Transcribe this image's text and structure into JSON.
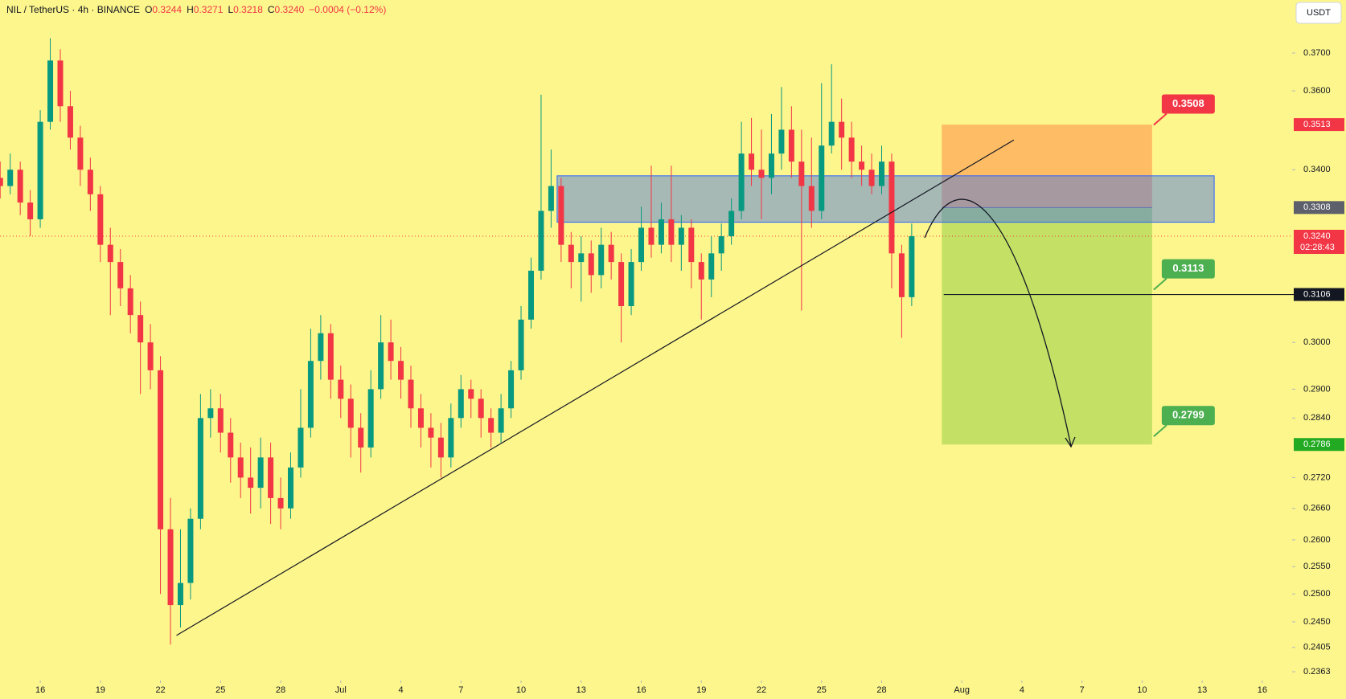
{
  "header": {
    "symbol": "NIL / TetherUS · 4h · BINANCE",
    "ohlc": [
      {
        "key": "O",
        "value": "0.3244"
      },
      {
        "key": "H",
        "value": "0.3271"
      },
      {
        "key": "L",
        "value": "0.3218"
      },
      {
        "key": "C",
        "value": "0.3240"
      }
    ],
    "change": "−0.0004 (−0.12%)",
    "currency": "USDT"
  },
  "chart_data": {
    "type": "candlestick",
    "log": true,
    "grid": false,
    "up_color": "#089981",
    "down_color": "#f23645",
    "xlim": [
      -2.01,
      62.49
    ],
    "ylim": [
      0.2348,
      0.3845
    ],
    "xticks": [
      {
        "value": 0,
        "label": "16"
      },
      {
        "value": 3,
        "label": "19"
      },
      {
        "value": 6,
        "label": "22"
      },
      {
        "value": 9,
        "label": "25"
      },
      {
        "value": 12,
        "label": "28"
      },
      {
        "value": 15,
        "label": "Jul"
      },
      {
        "value": 18,
        "label": "4"
      },
      {
        "value": 21,
        "label": "7"
      },
      {
        "value": 24,
        "label": "10"
      },
      {
        "value": 27,
        "label": "13"
      },
      {
        "value": 30,
        "label": "16"
      },
      {
        "value": 33,
        "label": "19"
      },
      {
        "value": 36,
        "label": "22"
      },
      {
        "value": 39,
        "label": "25"
      },
      {
        "value": 42,
        "label": "28"
      },
      {
        "value": 46,
        "label": "Aug"
      },
      {
        "value": 49,
        "label": "4"
      },
      {
        "value": 52,
        "label": "7"
      },
      {
        "value": 55,
        "label": "10"
      },
      {
        "value": 58,
        "label": "13"
      },
      {
        "value": 61,
        "label": "16"
      }
    ],
    "yticks": [
      {
        "value": 0.37,
        "label": "0.3700"
      },
      {
        "value": 0.36,
        "label": "0.3600"
      },
      {
        "value": 0.34,
        "label": "0.3400"
      },
      {
        "value": 0.3,
        "label": "0.3000"
      },
      {
        "value": 0.29,
        "label": "0.2900"
      },
      {
        "value": 0.284,
        "label": "0.2840"
      },
      {
        "value": 0.272,
        "label": "0.2720"
      },
      {
        "value": 0.266,
        "label": "0.2660"
      },
      {
        "value": 0.26,
        "label": "0.2600"
      },
      {
        "value": 0.255,
        "label": "0.2550"
      },
      {
        "value": 0.25,
        "label": "0.2500"
      },
      {
        "value": 0.245,
        "label": "0.2450"
      },
      {
        "value": 0.2405,
        "label": "0.2405"
      },
      {
        "value": 0.2363,
        "label": "0.2363"
      }
    ],
    "x": [
      -2,
      -1.5,
      -1,
      -0.5,
      0,
      0.5,
      1,
      1.5,
      2,
      2.5,
      3,
      3.5,
      4,
      4.5,
      5,
      5.5,
      6,
      6.5,
      7,
      7.5,
      8,
      8.5,
      9,
      9.5,
      10,
      10.5,
      11,
      11.5,
      12,
      12.5,
      13,
      13.5,
      14,
      14.5,
      15,
      15.5,
      16,
      16.5,
      17,
      17.5,
      18,
      18.5,
      19,
      19.5,
      20,
      20.5,
      21,
      21.5,
      22,
      22.5,
      23,
      23.5,
      24,
      24.5,
      25,
      25.5,
      26,
      26.5,
      27,
      27.5,
      28,
      28.5,
      29,
      29.5,
      30,
      30.5,
      31,
      31.5,
      32,
      32.5,
      33,
      33.5,
      34,
      34.5,
      35,
      35.5,
      36,
      36.5,
      37,
      37.5,
      38,
      38.5,
      39,
      39.5,
      40,
      40.5,
      41,
      41.5,
      42,
      42.5,
      43,
      43.5
    ],
    "open": [
      0.338,
      0.336,
      0.34,
      0.332,
      0.328,
      0.352,
      0.368,
      0.356,
      0.348,
      0.34,
      0.334,
      0.322,
      0.318,
      0.312,
      0.306,
      0.3,
      0.294,
      0.262,
      0.248,
      0.252,
      0.264,
      0.284,
      0.286,
      0.281,
      0.276,
      0.272,
      0.27,
      0.276,
      0.268,
      0.266,
      0.274,
      0.282,
      0.296,
      0.302,
      0.292,
      0.288,
      0.282,
      0.278,
      0.29,
      0.3,
      0.296,
      0.292,
      0.286,
      0.282,
      0.28,
      0.276,
      0.284,
      0.29,
      0.288,
      0.284,
      0.281,
      0.286,
      0.294,
      0.305,
      0.316,
      0.33,
      0.336,
      0.322,
      0.318,
      0.32,
      0.315,
      0.322,
      0.318,
      0.308,
      0.318,
      0.326,
      0.322,
      0.328,
      0.322,
      0.326,
      0.318,
      0.314,
      0.32,
      0.324,
      0.33,
      0.344,
      0.34,
      0.338,
      0.344,
      0.35,
      0.342,
      0.336,
      0.33,
      0.346,
      0.352,
      0.348,
      0.342,
      0.34,
      0.336,
      0.342,
      0.32,
      0.31
    ],
    "high": [
      0.342,
      0.344,
      0.342,
      0.335,
      0.355,
      0.374,
      0.371,
      0.36,
      0.351,
      0.343,
      0.336,
      0.326,
      0.321,
      0.315,
      0.309,
      0.304,
      0.297,
      0.268,
      0.262,
      0.266,
      0.289,
      0.29,
      0.289,
      0.284,
      0.279,
      0.278,
      0.28,
      0.279,
      0.272,
      0.277,
      0.29,
      0.303,
      0.306,
      0.304,
      0.295,
      0.291,
      0.285,
      0.294,
      0.306,
      0.305,
      0.299,
      0.295,
      0.289,
      0.285,
      0.283,
      0.287,
      0.293,
      0.292,
      0.29,
      0.286,
      0.289,
      0.296,
      0.308,
      0.319,
      0.359,
      0.345,
      0.338,
      0.325,
      0.324,
      0.323,
      0.326,
      0.325,
      0.32,
      0.321,
      0.331,
      0.341,
      0.332,
      0.341,
      0.329,
      0.328,
      0.32,
      0.324,
      0.327,
      0.333,
      0.352,
      0.353,
      0.35,
      0.354,
      0.361,
      0.356,
      0.35,
      0.348,
      0.362,
      0.367,
      0.358,
      0.352,
      0.346,
      0.344,
      0.346,
      0.344,
      0.322,
      0.327
    ],
    "low": [
      0.333,
      0.334,
      0.329,
      0.324,
      0.326,
      0.35,
      0.352,
      0.345,
      0.336,
      0.33,
      0.318,
      0.306,
      0.308,
      0.302,
      0.289,
      0.29,
      0.25,
      0.241,
      0.244,
      0.249,
      0.262,
      0.28,
      0.277,
      0.271,
      0.268,
      0.265,
      0.266,
      0.263,
      0.262,
      0.264,
      0.272,
      0.28,
      0.292,
      0.288,
      0.284,
      0.276,
      0.273,
      0.276,
      0.288,
      0.292,
      0.288,
      0.282,
      0.278,
      0.274,
      0.272,
      0.274,
      0.282,
      0.284,
      0.28,
      0.278,
      0.279,
      0.284,
      0.292,
      0.303,
      0.314,
      0.326,
      0.318,
      0.312,
      0.309,
      0.311,
      0.312,
      0.314,
      0.3,
      0.306,
      0.316,
      0.319,
      0.32,
      0.318,
      0.316,
      0.312,
      0.305,
      0.31,
      0.316,
      0.322,
      0.328,
      0.336,
      0.328,
      0.334,
      0.34,
      0.338,
      0.307,
      0.326,
      0.328,
      0.344,
      0.34,
      0.338,
      0.336,
      0.334,
      0.334,
      0.312,
      0.301,
      0.308
    ],
    "close": [
      0.336,
      0.34,
      0.332,
      0.328,
      0.352,
      0.368,
      0.356,
      0.348,
      0.34,
      0.334,
      0.322,
      0.318,
      0.312,
      0.306,
      0.3,
      0.294,
      0.262,
      0.248,
      0.252,
      0.264,
      0.284,
      0.286,
      0.281,
      0.276,
      0.272,
      0.27,
      0.276,
      0.268,
      0.266,
      0.274,
      0.282,
      0.296,
      0.302,
      0.292,
      0.288,
      0.282,
      0.278,
      0.29,
      0.3,
      0.296,
      0.292,
      0.286,
      0.282,
      0.28,
      0.276,
      0.284,
      0.29,
      0.288,
      0.284,
      0.281,
      0.286,
      0.294,
      0.305,
      0.316,
      0.33,
      0.336,
      0.322,
      0.318,
      0.32,
      0.315,
      0.322,
      0.318,
      0.308,
      0.318,
      0.326,
      0.322,
      0.328,
      0.322,
      0.326,
      0.318,
      0.314,
      0.32,
      0.324,
      0.33,
      0.344,
      0.34,
      0.338,
      0.344,
      0.35,
      0.342,
      0.336,
      0.33,
      0.346,
      0.352,
      0.348,
      0.342,
      0.34,
      0.336,
      0.342,
      0.32,
      0.31,
      0.324
    ],
    "trendline": {
      "x": [
        6.8,
        48.6
      ],
      "values": [
        0.2426,
        0.3474
      ]
    },
    "zone": {
      "x": [
        25.8,
        58.6
      ],
      "values": [
        0.3273,
        0.3385
      ]
    },
    "position": {
      "x": [
        45.0,
        55.5
      ],
      "entry": 0.3308,
      "stop": 0.3513,
      "target": 0.2786
    },
    "level": {
      "x": 45.1,
      "value": 0.3106
    },
    "last_price": 0.324,
    "callouts": [
      {
        "value": 0.3508,
        "color": "#f23645"
      },
      {
        "value": 0.3113,
        "color": "#4caf50"
      },
      {
        "value": 0.2799,
        "color": "#4caf50"
      }
    ],
    "price_labels": [
      {
        "value": 0.3513,
        "label": "0.3513",
        "color": "#f23645"
      },
      {
        "value": 0.3308,
        "label": "0.3308",
        "color": "#5d606b"
      },
      {
        "value": 0.324,
        "label": "0.3240",
        "color": "#f23645",
        "countdown": "02:28:43"
      },
      {
        "value": 0.3106,
        "label": "0.3106",
        "color": "#131722"
      },
      {
        "value": 0.2786,
        "label": "0.2786",
        "color": "#22ab22"
      }
    ]
  }
}
